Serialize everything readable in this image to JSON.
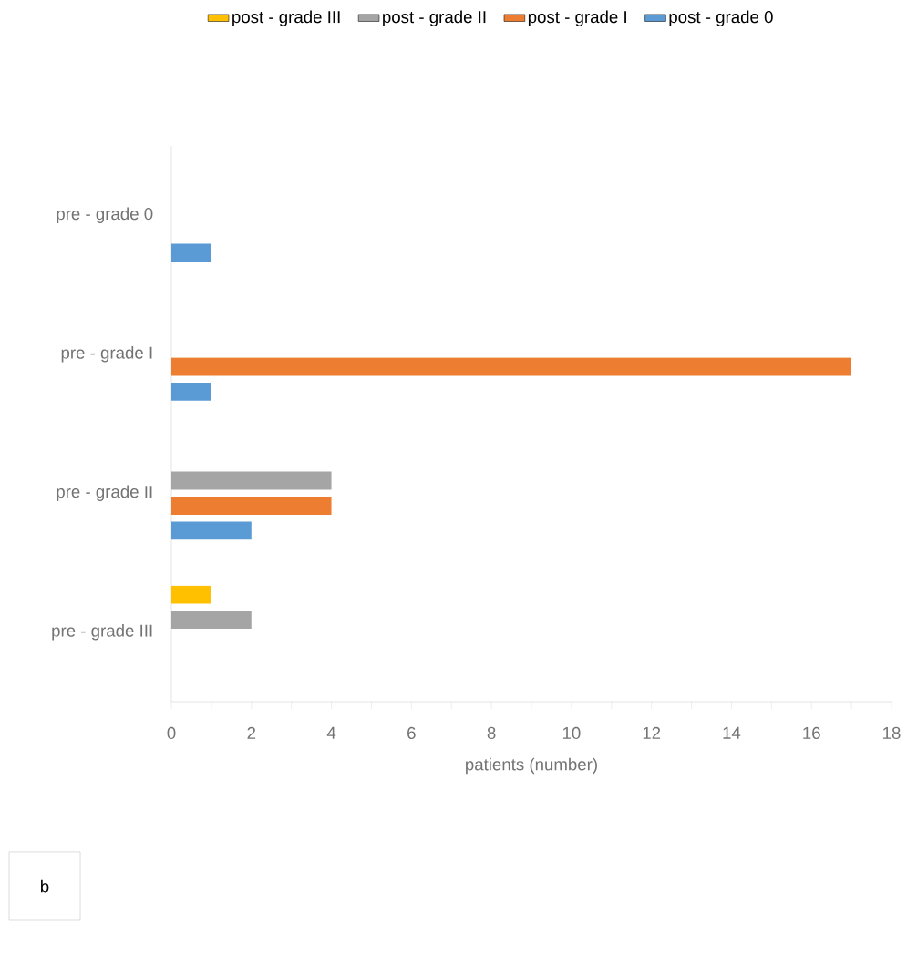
{
  "chart_data": {
    "type": "bar",
    "orientation": "horizontal",
    "categories": [
      "pre - grade 0",
      "pre - grade I",
      "pre - grade II",
      "pre - grade III"
    ],
    "series": [
      {
        "name": "post - grade III",
        "color": "#ffc000",
        "values": [
          null,
          null,
          null,
          1
        ]
      },
      {
        "name": "post - grade II",
        "color": "#a5a5a5",
        "values": [
          null,
          null,
          4,
          2
        ]
      },
      {
        "name": "post - grade I",
        "color": "#ed7d31",
        "values": [
          null,
          17,
          4,
          null
        ]
      },
      {
        "name": "post - grade 0",
        "color": "#5b9bd5",
        "values": [
          1,
          1,
          2,
          null
        ]
      }
    ],
    "xlim": [
      0,
      18
    ],
    "xticks": [
      0,
      2,
      4,
      6,
      8,
      10,
      12,
      14,
      16,
      18
    ],
    "xlabel": "patients (number)",
    "legend": "top",
    "annotations": [
      "b"
    ]
  }
}
